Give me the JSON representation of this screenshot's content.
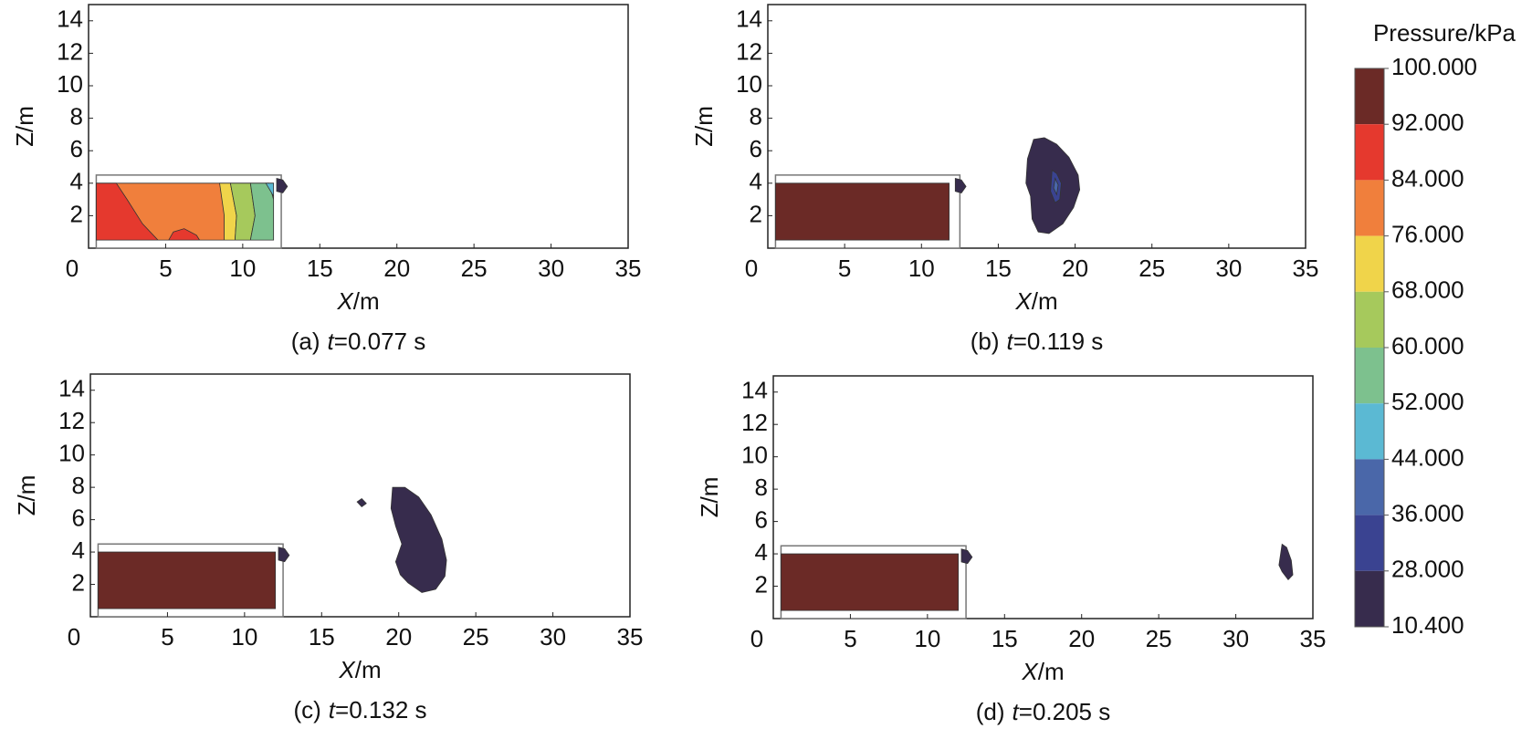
{
  "chart_data": [
    {
      "type": "contour",
      "caption": [
        "(a)",
        "t",
        "=0.077 s"
      ],
      "xlabel": [
        "X",
        "/m"
      ],
      "ylabel": "Z/m",
      "xlim": [
        0,
        35
      ],
      "ylim": [
        0,
        15
      ],
      "xticks": [
        0,
        5,
        10,
        15,
        20,
        25,
        30,
        35
      ],
      "yticks": [
        2,
        4,
        6,
        8,
        10,
        12,
        14
      ],
      "outline": {
        "x": [
          0.5,
          12.5,
          12.5,
          0.5
        ],
        "z": [
          0,
          0,
          4.5,
          4.5
        ]
      },
      "regions": [
        {
          "color": "#f07f3c",
          "x": [
            0.5,
            12,
            12,
            0.5
          ],
          "z": [
            0.5,
            0.5,
            4,
            4
          ]
        },
        {
          "color": "#e5392e",
          "x": [
            0.5,
            4.5,
            3.5,
            2.5,
            1.8,
            0.5
          ],
          "z": [
            0.5,
            0.5,
            1.5,
            3,
            4,
            4
          ]
        },
        {
          "color": "#e5392e",
          "x": [
            5.2,
            5.5,
            6.2,
            7,
            7.2
          ],
          "z": [
            0.5,
            1,
            1.2,
            0.8,
            0.5
          ]
        },
        {
          "color": "#f0d44a",
          "x": [
            8.5,
            9.2,
            9.6,
            9.5,
            8.8,
            8.8
          ],
          "z": [
            4,
            4,
            2,
            0.5,
            0.5,
            2
          ]
        },
        {
          "color": "#a6c95c",
          "x": [
            9.2,
            10.5,
            10.8,
            10.5,
            9.5,
            9.6
          ],
          "z": [
            4,
            4,
            2,
            0.5,
            0.5,
            2
          ]
        },
        {
          "color": "#7dc18e",
          "x": [
            10.5,
            11.7,
            12,
            12,
            10.5,
            10.8
          ],
          "z": [
            4,
            4,
            3,
            0.5,
            0.5,
            2
          ]
        },
        {
          "color": "#5bb9d3",
          "x": [
            11.5,
            12,
            12
          ],
          "z": [
            4,
            4,
            3.2
          ]
        },
        {
          "color": "#372c4d",
          "x": [
            12.2,
            12.6,
            12.9,
            12.6,
            12.2
          ],
          "z": [
            4.3,
            4.2,
            3.8,
            3.4,
            3.5
          ]
        }
      ]
    },
    {
      "type": "contour",
      "caption": [
        "(b)",
        "t",
        "=0.119 s"
      ],
      "xlabel": [
        "X",
        "/m"
      ],
      "ylabel": "Z/m",
      "xlim": [
        0,
        35
      ],
      "ylim": [
        0,
        15
      ],
      "xticks": [
        0,
        5,
        10,
        15,
        20,
        25,
        30,
        35
      ],
      "yticks": [
        2,
        4,
        6,
        8,
        10,
        12,
        14
      ],
      "outline": {
        "x": [
          0.5,
          12.5,
          12.5,
          0.5
        ],
        "z": [
          0,
          0,
          4.5,
          4.5
        ]
      },
      "regions": [
        {
          "color": "#6b2a26",
          "x": [
            0.5,
            11.8,
            11.8,
            0.5
          ],
          "z": [
            0.5,
            0.5,
            4,
            4
          ]
        },
        {
          "color": "#372c4d",
          "x": [
            12.2,
            12.6,
            12.9,
            12.6,
            12.2
          ],
          "z": [
            4.3,
            4.2,
            3.8,
            3.4,
            3.5
          ]
        },
        {
          "color": "#372c4d",
          "x": [
            17.3,
            18,
            18.8,
            19.6,
            20.2,
            20.3,
            19.9,
            19.2,
            18.3,
            17.6,
            17.2,
            17.1,
            16.8,
            16.9,
            17.3
          ],
          "z": [
            6.7,
            6.8,
            6.4,
            5.6,
            4.5,
            3.6,
            2.5,
            1.5,
            0.9,
            1.0,
            1.8,
            3.2,
            4.0,
            5.5,
            6.7
          ]
        },
        {
          "color": "#3a4391",
          "x": [
            18.5,
            18.8,
            19.1,
            19.0,
            18.7,
            18.4
          ],
          "z": [
            4.8,
            4.6,
            4.0,
            3.0,
            2.8,
            3.5
          ]
        },
        {
          "color": "#4a67a9",
          "x": [
            18.7,
            18.9,
            18.8,
            18.6
          ],
          "z": [
            4.3,
            3.9,
            3.3,
            3.7
          ]
        }
      ]
    },
    {
      "type": "contour",
      "caption": [
        "(c)",
        "t",
        "=0.132 s"
      ],
      "xlabel": [
        "X",
        "/m"
      ],
      "ylabel": "Z/m",
      "xlim": [
        0,
        35
      ],
      "ylim": [
        0,
        15
      ],
      "xticks": [
        0,
        5,
        10,
        15,
        20,
        25,
        30,
        35
      ],
      "yticks": [
        2,
        4,
        6,
        8,
        10,
        12,
        14
      ],
      "outline": {
        "x": [
          0.5,
          12.5,
          12.5,
          0.5
        ],
        "z": [
          0,
          0,
          4.5,
          4.5
        ]
      },
      "regions": [
        {
          "color": "#6b2a26",
          "x": [
            0.5,
            12,
            12,
            0.5
          ],
          "z": [
            0.5,
            0.5,
            4,
            4
          ]
        },
        {
          "color": "#372c4d",
          "x": [
            12.2,
            12.6,
            12.9,
            12.6,
            12.2
          ],
          "z": [
            4.3,
            4.2,
            3.8,
            3.4,
            3.5
          ]
        },
        {
          "color": "#372c4d",
          "x": [
            17.3,
            17.6,
            17.9,
            17.6
          ],
          "z": [
            7.1,
            7.3,
            7.0,
            6.8
          ]
        },
        {
          "color": "#372c4d",
          "x": [
            19.6,
            20.4,
            21.3,
            22.1,
            22.8,
            23.1,
            23.0,
            22.4,
            21.5,
            20.6,
            20.1,
            19.8,
            20.2,
            19.8,
            19.5,
            19.6
          ],
          "z": [
            8.0,
            8.0,
            7.4,
            6.3,
            4.8,
            3.5,
            2.5,
            1.7,
            1.5,
            2.1,
            2.6,
            3.4,
            4.5,
            5.6,
            6.7,
            8.0
          ]
        }
      ]
    },
    {
      "type": "contour",
      "caption": [
        "(d)",
        "t",
        "=0.205 s"
      ],
      "xlabel": [
        "X",
        "/m"
      ],
      "ylabel": "Z/m",
      "xlim": [
        0,
        35
      ],
      "ylim": [
        0,
        15
      ],
      "xticks": [
        0,
        5,
        10,
        15,
        20,
        25,
        30,
        35
      ],
      "yticks": [
        2,
        4,
        6,
        8,
        10,
        12,
        14
      ],
      "outline": {
        "x": [
          0.5,
          12.5,
          12.5,
          0.5
        ],
        "z": [
          0,
          0,
          4.5,
          4.5
        ]
      },
      "regions": [
        {
          "color": "#6b2a26",
          "x": [
            0.5,
            12,
            12,
            0.5
          ],
          "z": [
            0.5,
            0.5,
            4,
            4
          ]
        },
        {
          "color": "#372c4d",
          "x": [
            12.2,
            12.6,
            12.9,
            12.6,
            12.2
          ],
          "z": [
            4.3,
            4.2,
            3.8,
            3.4,
            3.5
          ]
        },
        {
          "color": "#372c4d",
          "x": [
            33.0,
            33.3,
            33.6,
            33.7,
            33.4,
            33.0,
            32.8,
            33.0
          ],
          "z": [
            4.6,
            4.4,
            3.6,
            2.7,
            2.4,
            2.9,
            3.3,
            4.6
          ]
        }
      ]
    },
    {
      "type": "colorbar",
      "title": "Pressure/kPa",
      "ticks": [
        {
          "value": 100,
          "label": "100.000"
        },
        {
          "value": 92,
          "label": "92.000"
        },
        {
          "value": 84,
          "label": "84.000"
        },
        {
          "value": 76,
          "label": "76.000"
        },
        {
          "value": 68,
          "label": "68.000"
        },
        {
          "value": 60,
          "label": "60.000"
        },
        {
          "value": 52,
          "label": "52.000"
        },
        {
          "value": 44,
          "label": "44.000"
        },
        {
          "value": 36,
          "label": "36.000"
        },
        {
          "value": 28,
          "label": "28.000"
        },
        {
          "value": 10.4,
          "label": "10.400"
        }
      ],
      "colors": [
        "#6b2a26",
        "#e5392e",
        "#f07f3c",
        "#f0d44a",
        "#a6c95c",
        "#7dc18e",
        "#5bb9d3",
        "#4a67a9",
        "#3a4391",
        "#372c4d"
      ]
    }
  ]
}
